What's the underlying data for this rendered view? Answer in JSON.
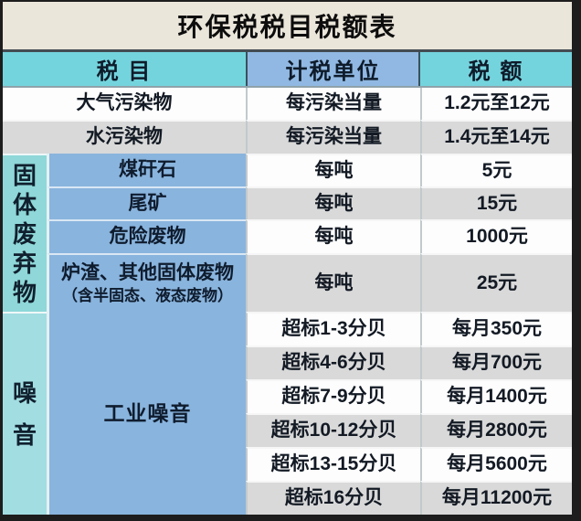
{
  "title": "环保税税目税额表",
  "header": {
    "col_item": "税 目",
    "col_unit": "计税单位",
    "col_amount": "税 额"
  },
  "rows_top": [
    {
      "item": "大气污染物",
      "unit": "每污染当量",
      "amount": "1.2元至12元"
    },
    {
      "item": "水污染物",
      "unit": "每污染当量",
      "amount": "1.4元至14元"
    }
  ],
  "solid_waste": {
    "group_label": "固体废弃物",
    "items": [
      {
        "item": "煤矸石",
        "unit": "每吨",
        "amount": "5元"
      },
      {
        "item": "尾矿",
        "unit": "每吨",
        "amount": "15元"
      },
      {
        "item": "危险废物",
        "unit": "每吨",
        "amount": "1000元"
      },
      {
        "item": "炉渣、其他固体废物",
        "item_note": "（含半固态、液态废物）",
        "unit": "每吨",
        "amount": "25元"
      }
    ]
  },
  "noise": {
    "group_label": "噪音",
    "sub_label": "工业噪音",
    "items": [
      {
        "level": "超标1-3分贝",
        "amount": "每月350元"
      },
      {
        "level": "超标4-6分贝",
        "amount": "每月700元"
      },
      {
        "level": "超标7-9分贝",
        "amount": "每月1400元"
      },
      {
        "level": "超标10-12分贝",
        "amount": "每月2800元"
      },
      {
        "level": "超标13-15分贝",
        "amount": "每月5600元"
      },
      {
        "level": "超标16分贝",
        "amount": "每月11200元"
      }
    ]
  },
  "colors": {
    "title_bg": "#ebe6da",
    "header_cyan": "#74d4dd",
    "header_blue": "#90b8e2",
    "group_teal": "#8fd7d8",
    "group_teal_noise": "#a2dde2",
    "sub_blue": "#89b4dd",
    "row_white": "#fdfdfd",
    "row_gray": "#d9d9d9",
    "frame_border": "#1d1d1d",
    "text": "#131a24"
  },
  "chart_data": {
    "type": "table",
    "title": "环保税税目税额表",
    "columns": [
      "税目",
      "计税单位",
      "税额"
    ],
    "rows": [
      [
        "大气污染物",
        "每污染当量",
        "1.2元至12元"
      ],
      [
        "水污染物",
        "每污染当量",
        "1.4元至14元"
      ],
      [
        "固体废弃物－煤矸石",
        "每吨",
        "5元"
      ],
      [
        "固体废弃物－尾矿",
        "每吨",
        "15元"
      ],
      [
        "固体废弃物－危险废物",
        "每吨",
        "1000元"
      ],
      [
        "固体废弃物－炉渣、其他固体废物（含半固态、液态废物）",
        "每吨",
        "25元"
      ],
      [
        "噪音－工业噪音",
        "超标1-3分贝",
        "每月350元"
      ],
      [
        "噪音－工业噪音",
        "超标4-6分贝",
        "每月700元"
      ],
      [
        "噪音－工业噪音",
        "超标7-9分贝",
        "每月1400元"
      ],
      [
        "噪音－工业噪音",
        "超标10-12分贝",
        "每月2800元"
      ],
      [
        "噪音－工业噪音",
        "超标13-15分贝",
        "每月5600元"
      ],
      [
        "噪音－工业噪音",
        "超标16分贝",
        "每月11200元"
      ]
    ]
  }
}
